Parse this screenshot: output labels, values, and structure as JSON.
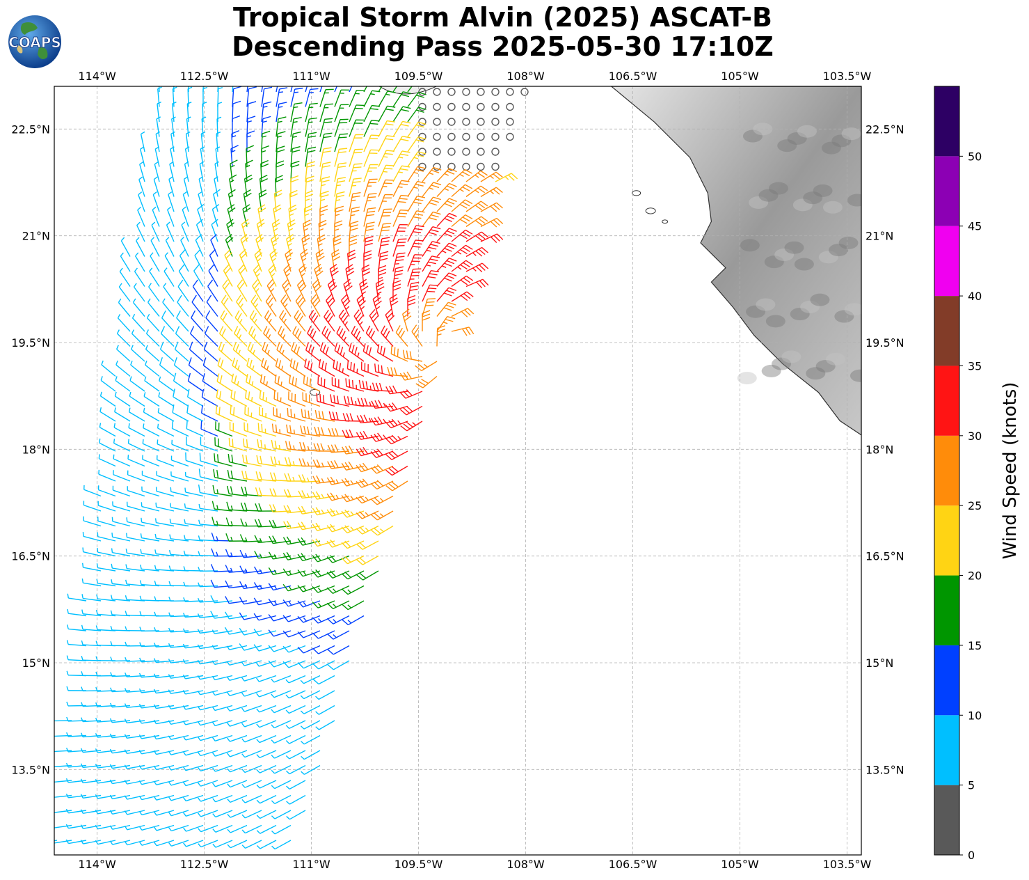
{
  "title": {
    "line1": "Tropical Storm Alvin (2025) ASCAT-B",
    "line2": "Descending Pass 2025-05-30 17:10Z"
  },
  "logo": {
    "text": "COAPS"
  },
  "map": {
    "lon_range": [
      -114.6,
      -103.3
    ],
    "lat_range": [
      12.3,
      23.1
    ],
    "lon_ticks": [
      {
        "value": -114.0,
        "label": "114°W"
      },
      {
        "value": -112.5,
        "label": "112.5°W"
      },
      {
        "value": -111.0,
        "label": "111°W"
      },
      {
        "value": -109.5,
        "label": "109.5°W"
      },
      {
        "value": -108.0,
        "label": "108°W"
      },
      {
        "value": -106.5,
        "label": "106.5°W"
      },
      {
        "value": -105.0,
        "label": "105°W"
      },
      {
        "value": -103.5,
        "label": "103.5°W"
      }
    ],
    "lat_ticks": [
      {
        "value": 22.5,
        "label": "22.5°N"
      },
      {
        "value": 21.0,
        "label": "21°N"
      },
      {
        "value": 19.5,
        "label": "19.5°N"
      },
      {
        "value": 18.0,
        "label": "18°N"
      },
      {
        "value": 16.5,
        "label": "16.5°N"
      },
      {
        "value": 15.0,
        "label": "15°N"
      },
      {
        "value": 13.5,
        "label": "13.5°N"
      }
    ],
    "grid": true,
    "storm_center": {
      "lon": -109.2,
      "lat": 19.4
    },
    "land_color": "#9a9a9a",
    "coast_color": "#333333"
  },
  "colorbar": {
    "label": "Wind Speed (knots)",
    "bins": [
      {
        "min": 0,
        "max": 5,
        "color": "#595959"
      },
      {
        "min": 5,
        "max": 10,
        "color": "#00bfff"
      },
      {
        "min": 10,
        "max": 15,
        "color": "#0040ff"
      },
      {
        "min": 15,
        "max": 20,
        "color": "#009600"
      },
      {
        "min": 20,
        "max": 25,
        "color": "#ffd414"
      },
      {
        "min": 25,
        "max": 30,
        "color": "#ff8c0a"
      },
      {
        "min": 30,
        "max": 35,
        "color": "#ff1414"
      },
      {
        "min": 35,
        "max": 40,
        "color": "#823c28"
      },
      {
        "min": 40,
        "max": 45,
        "color": "#f000f0"
      },
      {
        "min": 45,
        "max": 50,
        "color": "#8c00b4"
      },
      {
        "min": 50,
        "max": 55,
        "color": "#2d0064"
      }
    ],
    "tick_labels": [
      "0",
      "5",
      "10",
      "15",
      "20",
      "25",
      "30",
      "35",
      "40",
      "45",
      "50"
    ]
  }
}
